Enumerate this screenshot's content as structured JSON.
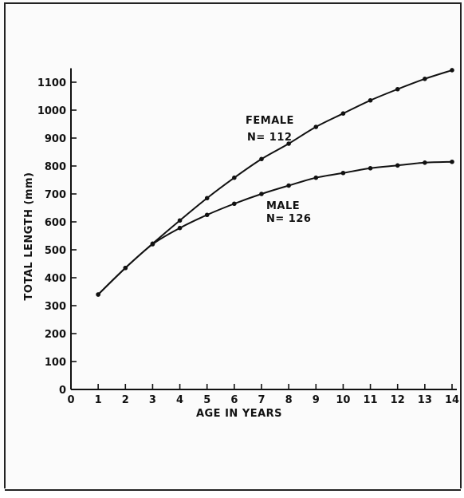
{
  "chart_data": {
    "type": "line",
    "title": "",
    "xlabel": "AGE IN YEARS",
    "ylabel": "TOTAL LENGTH (mm)",
    "xlim": [
      0,
      14
    ],
    "ylim": [
      0,
      1150
    ],
    "x_ticks": [
      0,
      1,
      2,
      3,
      4,
      5,
      6,
      7,
      8,
      9,
      10,
      11,
      12,
      13,
      14
    ],
    "y_ticks": [
      0,
      100,
      200,
      300,
      400,
      500,
      600,
      700,
      800,
      900,
      1000,
      1100
    ],
    "grid": false,
    "legend": "none",
    "x": [
      1,
      2,
      3,
      4,
      5,
      6,
      7,
      8,
      9,
      10,
      11,
      12,
      13,
      14
    ],
    "series": [
      {
        "name": "FEMALE",
        "values": [
          340,
          435,
          522,
          605,
          685,
          758,
          825,
          880,
          940,
          988,
          1035,
          1075,
          1112,
          1143
        ]
      },
      {
        "name": "MALE",
        "values": [
          340,
          435,
          520,
          578,
          625,
          665,
          700,
          730,
          758,
          775,
          792,
          802,
          812,
          815
        ]
      }
    ],
    "annotations": [
      {
        "series": "FEMALE",
        "line1": "FEMALE",
        "line2": "N= 112"
      },
      {
        "series": "MALE",
        "line1": "MALE",
        "line2": "N= 126"
      }
    ]
  }
}
